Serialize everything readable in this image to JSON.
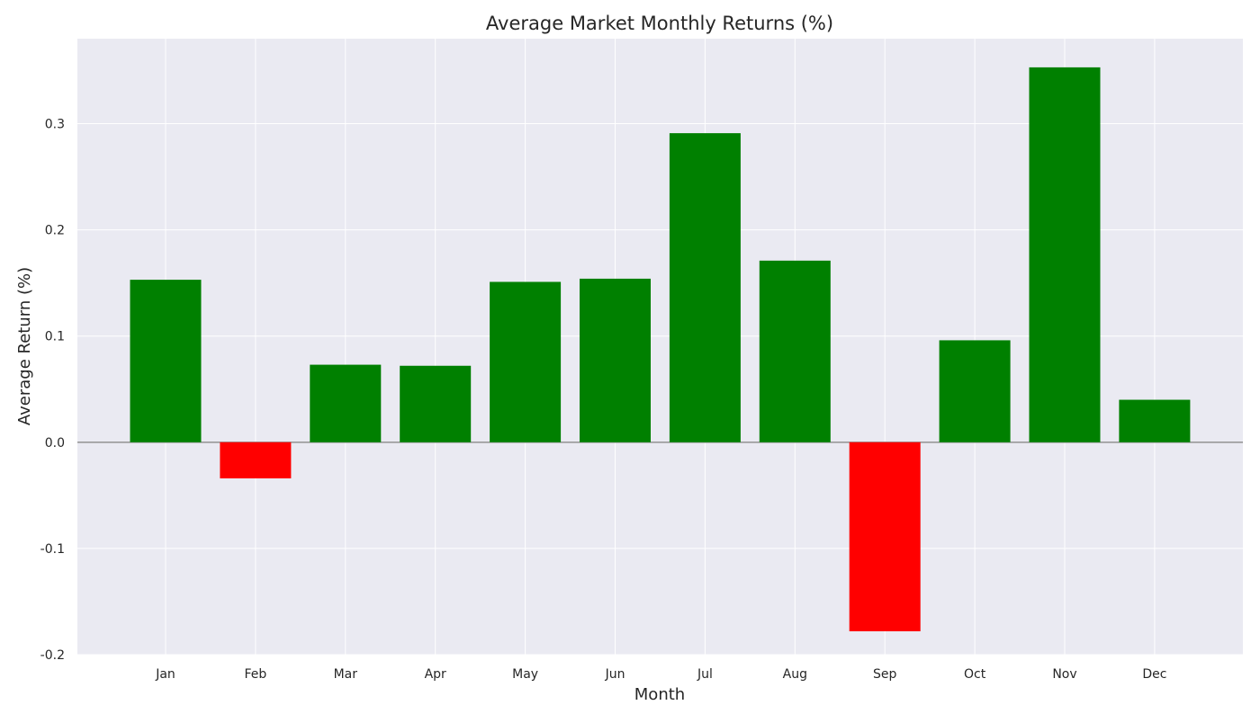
{
  "chart_data": {
    "type": "bar",
    "title": "Average Market Monthly Returns (%)",
    "xlabel": "Month",
    "ylabel": "Average Return (%)",
    "categories": [
      "Jan",
      "Feb",
      "Mar",
      "Apr",
      "May",
      "Jun",
      "Jul",
      "Aug",
      "Sep",
      "Oct",
      "Nov",
      "Dec"
    ],
    "values": [
      0.153,
      -0.034,
      0.073,
      0.072,
      0.151,
      0.154,
      0.291,
      0.171,
      -0.178,
      0.096,
      0.353,
      0.04
    ],
    "ylim": [
      -0.2,
      0.38
    ],
    "yticks": [
      -0.2,
      -0.1,
      0.0,
      0.1,
      0.2,
      0.3
    ],
    "ytick_labels": [
      "-0.2",
      "-0.1",
      "0.0",
      "0.1",
      "0.2",
      "0.3"
    ],
    "grid": true,
    "zero_line": true,
    "colors": {
      "positive": "#008000",
      "negative": "#ff0000",
      "plot_background": "#eaeaf2",
      "grid": "#ffffff",
      "zero_line": "#999999"
    }
  }
}
